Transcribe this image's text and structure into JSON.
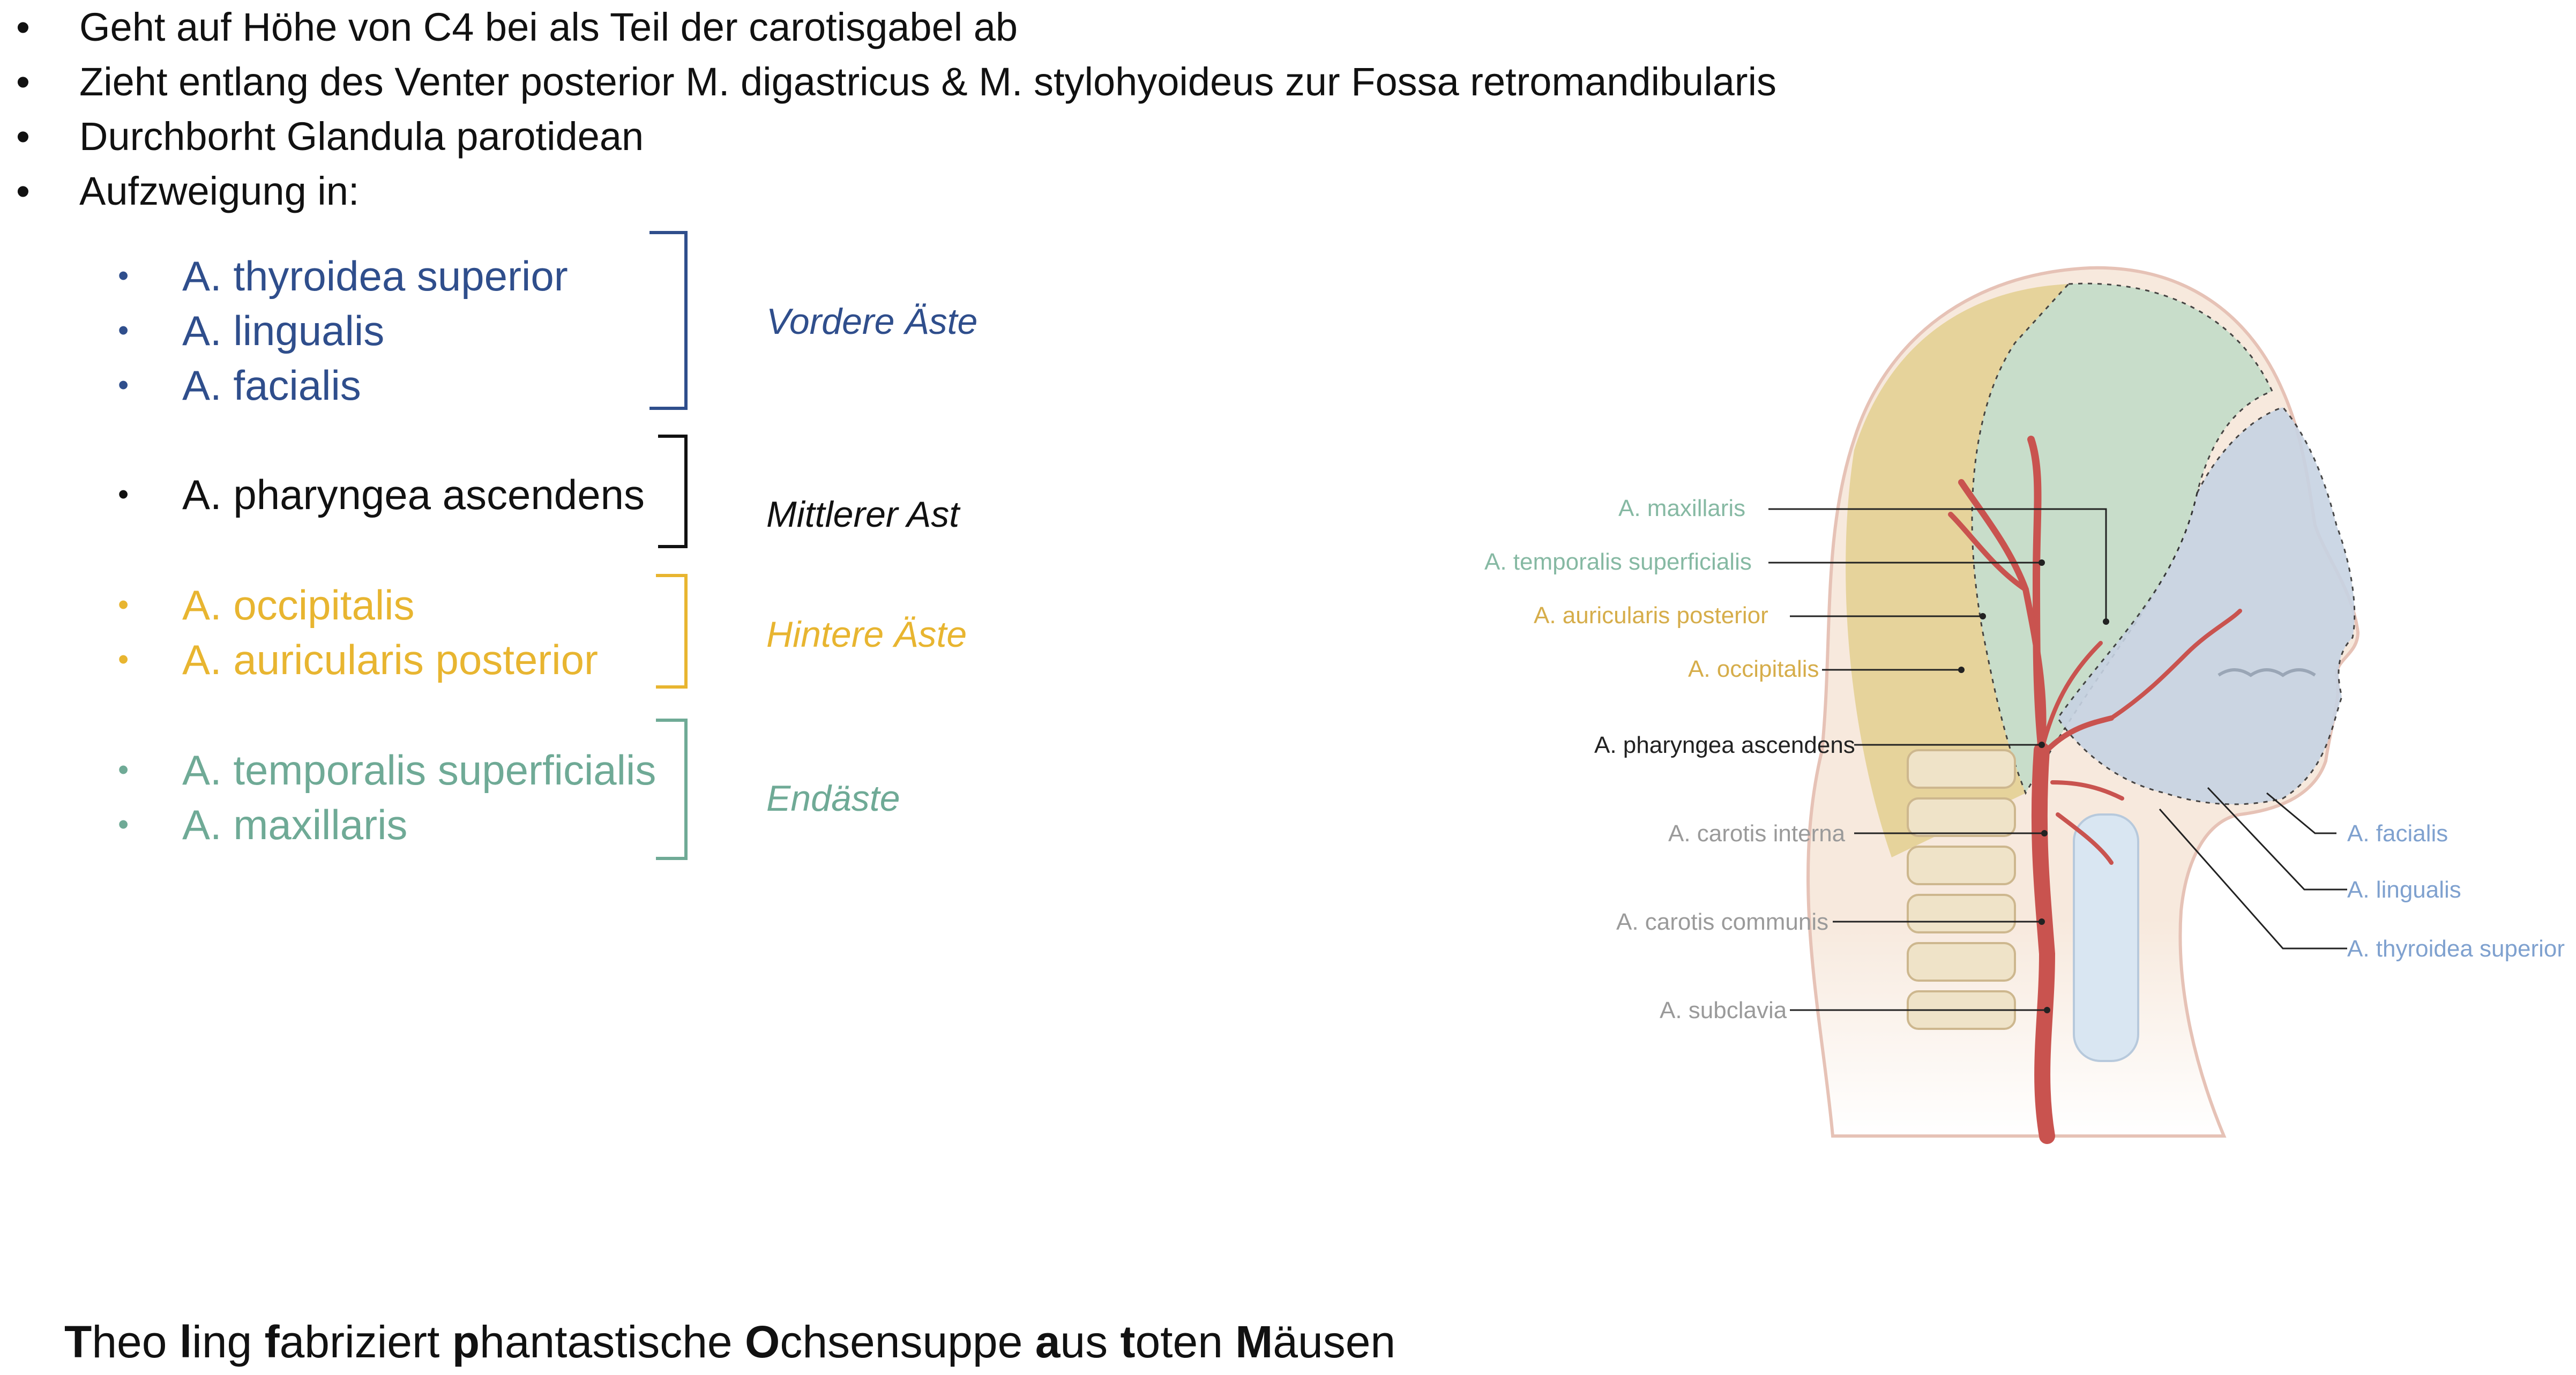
{
  "bullets": [
    "Geht auf Höhe von C4 bei als Teil der carotisgabel ab",
    "Zieht entlang des Venter posterior M. digastricus & M. stylohyoideus zur Fossa retromandibularis",
    "Durchborht Glandula parotidean",
    "Aufzweigung in:"
  ],
  "groups": [
    {
      "label": "Vordere Äste",
      "color": "#2f4e8c",
      "items": [
        "A. thyroidea superior",
        "A. lingualis",
        "A. facialis"
      ]
    },
    {
      "label": "Mittlerer Ast",
      "color": "#111111",
      "items": [
        "A. pharyngea ascendens"
      ]
    },
    {
      "label": "Hintere Äste",
      "color": "#e8b530",
      "items": [
        "A. occipitalis",
        "A. auricularis posterior"
      ]
    },
    {
      "label": "Endäste",
      "color": "#6faa96",
      "items": [
        "A. temporalis superficialis",
        "A. maxillaris"
      ]
    }
  ],
  "figure": {
    "left_labels": [
      "A. maxillaris",
      "A. temporalis superficialis",
      "A. auricularis posterior",
      "A. occipitalis",
      "A. pharyngea ascendens",
      "A. carotis interna",
      "A. carotis communis",
      "A. subclavia"
    ],
    "right_labels": [
      "A. facialis",
      "A. lingualis",
      "A. thyroidea superior"
    ]
  },
  "mnemonic": {
    "segments": [
      {
        "b": "T",
        "t": "heo "
      },
      {
        "b": "l",
        "t": "ing "
      },
      {
        "b": "f",
        "t": "abriziert "
      },
      {
        "b": "p",
        "t": "hantastische "
      },
      {
        "b": "O",
        "t": "chsensuppe "
      },
      {
        "b": "a",
        "t": "us "
      },
      {
        "b": "t",
        "t": "oten "
      },
      {
        "b": "M",
        "t": "äusen"
      }
    ]
  }
}
